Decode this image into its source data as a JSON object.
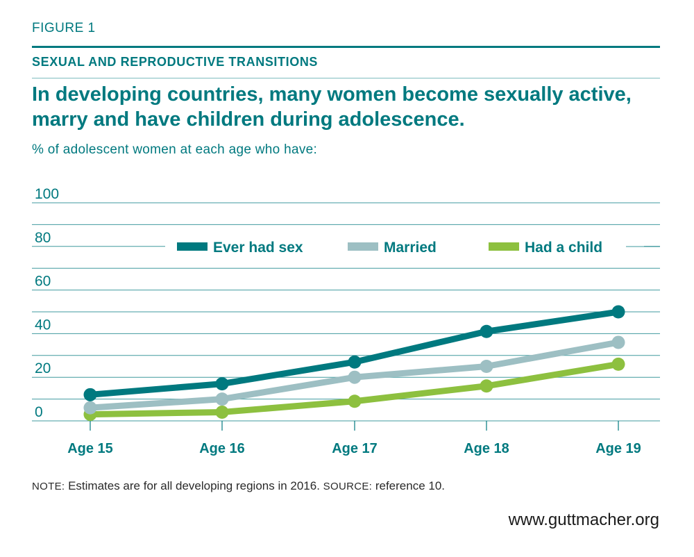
{
  "figure_label": "FIGURE 1",
  "kicker": "SEXUAL AND REPRODUCTIVE TRANSITIONS",
  "headline": "In developing countries, many women become sexually active, marry and have children during adolescence.",
  "subtitle": "% of adolescent women at each age who have:",
  "note": {
    "note_label": "NOTE:",
    "note_text": " Estimates are for all developing regions in 2016. ",
    "source_label": "SOURCE:",
    "source_text": " reference 10."
  },
  "website": "www.guttmacher.org",
  "colors": {
    "teal": "#00797f",
    "gray": "#9dbfc3",
    "green": "#8dc03f"
  },
  "chart_data": {
    "type": "line",
    "categories": [
      "Age 15",
      "Age 16",
      "Age 17",
      "Age 18",
      "Age 19"
    ],
    "ylim": [
      0,
      100
    ],
    "yticks": [
      "100",
      "80",
      "60",
      "40",
      "20",
      "0"
    ],
    "ytick_values": [
      100,
      80,
      60,
      40,
      20,
      0
    ],
    "grid": true,
    "legend": "top",
    "series": [
      {
        "name": "Ever had sex",
        "color": "#00797f",
        "values": [
          12,
          17,
          27,
          41,
          50
        ]
      },
      {
        "name": "Married",
        "color": "#9dbfc3",
        "values": [
          6,
          10,
          20,
          25,
          36
        ]
      },
      {
        "name": "Had a child",
        "color": "#8dc03f",
        "values": [
          3,
          4,
          9,
          16,
          26
        ]
      }
    ]
  }
}
